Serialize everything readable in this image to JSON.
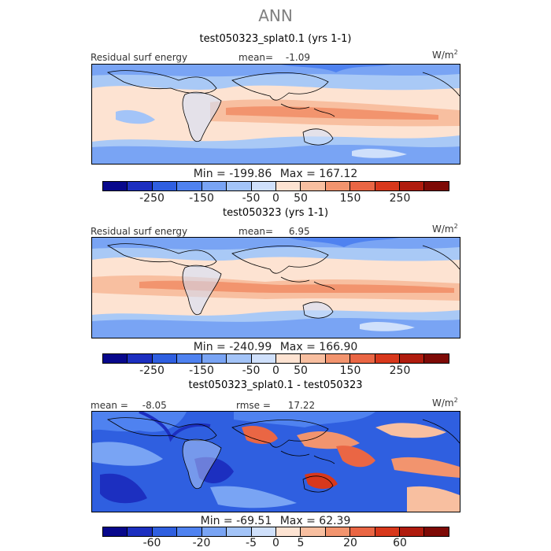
{
  "title": "ANN",
  "panels": [
    {
      "title": "test050323_splat0.1 (yrs 1-1)",
      "field_label": "Residual surf energy",
      "mean_label": "mean=",
      "mean_value": "-1.09",
      "units": "W/m",
      "units_exp": "2",
      "min_label": "Min =",
      "min_value": "-199.86",
      "max_label": "Max =",
      "max_value": "167.12",
      "colorbar_ticks": [
        "-250",
        "-150",
        "-50",
        "0",
        "50",
        "150",
        "250"
      ]
    },
    {
      "title": "test050323 (yrs 1-1)",
      "field_label": "Residual surf energy",
      "mean_label": "mean=",
      "mean_value": "6.95",
      "units": "W/m",
      "units_exp": "2",
      "min_label": "Min =",
      "min_value": "-240.99",
      "max_label": "Max =",
      "max_value": "166.90",
      "colorbar_ticks": [
        "-250",
        "-150",
        "-50",
        "0",
        "50",
        "150",
        "250"
      ]
    },
    {
      "title": "test050323_splat0.1 - test050323",
      "mean_label": "mean =",
      "mean_value": "-8.05",
      "rmse_label": "rmse =",
      "rmse_value": "17.22",
      "units": "W/m",
      "units_exp": "2",
      "min_label": "Min =",
      "min_value": "-69.51",
      "max_label": "Max =",
      "max_value": "62.39",
      "colorbar_ticks": [
        "-60",
        "-20",
        "-5",
        "0",
        "5",
        "20",
        "60"
      ]
    }
  ],
  "colors": {
    "colorbar_swatches": [
      "#08088c",
      "#1c2fc0",
      "#2f5fe0",
      "#4f82f0",
      "#79a4f4",
      "#a3c4f8",
      "#cfe0fb",
      "#fde3d2",
      "#f8bfa0",
      "#f2946e",
      "#ea6644",
      "#d8381c",
      "#b01c0e",
      "#7e0a06"
    ],
    "ocean_base": "#a9c9f6",
    "land_base": "#c8ddfa"
  },
  "chart_data": [
    {
      "type": "heatmap",
      "title": "test050323_splat0.1 (yrs 1-1)",
      "variable": "Residual surf energy",
      "units": "W/m2",
      "mean": -1.09,
      "min": -199.86,
      "max": 167.12,
      "contour_levels": [
        -300,
        -250,
        -200,
        -150,
        -100,
        -50,
        -25,
        0,
        25,
        50,
        100,
        150,
        200,
        250,
        300
      ],
      "colorbar_ticks": [
        -250,
        -150,
        -50,
        0,
        50,
        150,
        250
      ]
    },
    {
      "type": "heatmap",
      "title": "test050323 (yrs 1-1)",
      "variable": "Residual surf energy",
      "units": "W/m2",
      "mean": 6.95,
      "min": -240.99,
      "max": 166.9,
      "contour_levels": [
        -300,
        -250,
        -200,
        -150,
        -100,
        -50,
        -25,
        0,
        25,
        50,
        100,
        150,
        200,
        250,
        300
      ],
      "colorbar_ticks": [
        -250,
        -150,
        -50,
        0,
        50,
        150,
        250
      ]
    },
    {
      "type": "heatmap",
      "title": "test050323_splat0.1 - test050323",
      "units": "W/m2",
      "mean": -8.05,
      "rmse": 17.22,
      "min": -69.51,
      "max": 62.39,
      "contour_levels": [
        -80,
        -60,
        -40,
        -20,
        -10,
        -5,
        -2,
        0,
        2,
        5,
        10,
        20,
        40,
        60,
        80
      ],
      "colorbar_ticks": [
        -60,
        -20,
        -5,
        0,
        5,
        20,
        60
      ]
    }
  ]
}
